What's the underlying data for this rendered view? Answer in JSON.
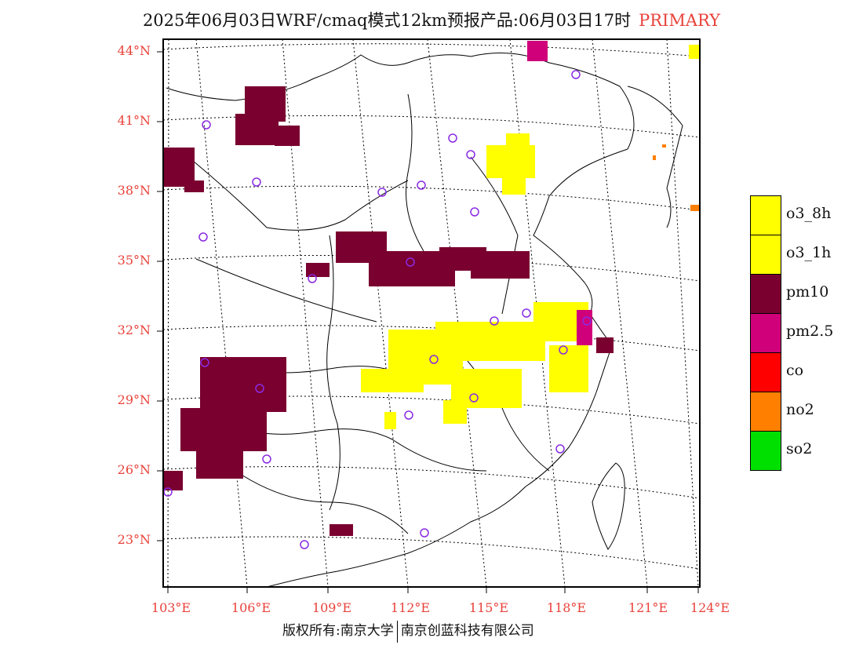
{
  "header": {
    "title": "2025年06月03日WRF/cmaq模式12km预报产品:06月03日17时",
    "primary_label": "PRIMARY"
  },
  "axes": {
    "lat_labels": [
      "44°N",
      "41°N",
      "38°N",
      "35°N",
      "32°N",
      "29°N",
      "26°N",
      "23°N"
    ],
    "lon_labels": [
      "103°E",
      "106°E",
      "109°E",
      "112°E",
      "115°E",
      "118°E",
      "121°E",
      "124°E"
    ]
  },
  "legend": {
    "items": [
      {
        "label": "o3_8h",
        "color": "#ffff00"
      },
      {
        "label": "o3_1h",
        "color": "#ffff00"
      },
      {
        "label": "pm10",
        "color": "#7a0030"
      },
      {
        "label": "pm2.5",
        "color": "#d0007a"
      },
      {
        "label": "co",
        "color": "#ff0000"
      },
      {
        "label": "no2",
        "color": "#ff7f00"
      },
      {
        "label": "so2",
        "color": "#00e000"
      }
    ]
  },
  "footer": {
    "copyright": "版权所有:南京大学",
    "company": "南京创蓝科技有限公司"
  },
  "colors": {
    "axis_label": "#e8423a",
    "station_marker": "#8a2be2"
  }
}
